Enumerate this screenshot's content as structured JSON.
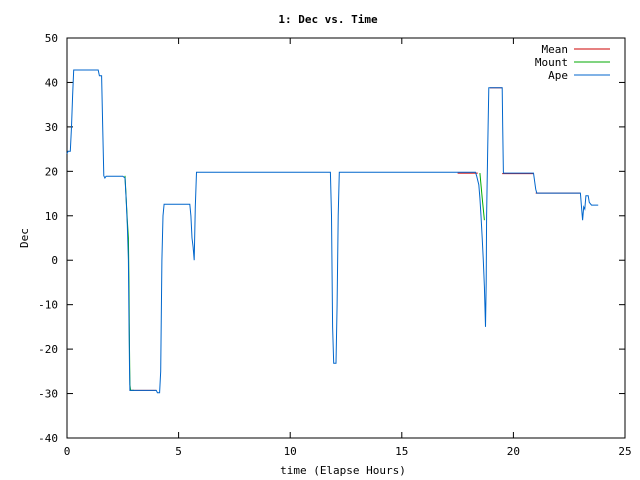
{
  "chart_data": {
    "type": "line",
    "title": "1: Dec vs. Time",
    "xlabel": "time (Elapse Hours)",
    "ylabel": "Dec",
    "xlim": [
      0,
      25
    ],
    "ylim": [
      -40,
      50
    ],
    "xticks": [
      0,
      5,
      10,
      15,
      20,
      25
    ],
    "yticks": [
      -40,
      -30,
      -20,
      -10,
      0,
      10,
      20,
      30,
      40,
      50
    ],
    "grid": false,
    "legend": "top-right",
    "series": [
      {
        "name": "Mean",
        "color": "#cc0000",
        "segments": [
          [
            [
              2.8,
              -29.3
            ],
            [
              4.0,
              -29.3
            ]
          ],
          [
            [
              17.5,
              19.6
            ],
            [
              18.4,
              19.6
            ]
          ],
          [
            [
              18.95,
              38.8
            ],
            [
              19.5,
              38.8
            ]
          ],
          [
            [
              19.5,
              19.5
            ],
            [
              20.9,
              19.5
            ]
          ],
          [
            [
              21.0,
              15.1
            ],
            [
              23.0,
              15.1
            ]
          ]
        ]
      },
      {
        "name": "Mount",
        "color": "#00aa00",
        "segments": [
          [
            [
              2.6,
              19.0
            ],
            [
              2.7,
              9.0
            ],
            [
              2.75,
              5.0
            ],
            [
              2.78,
              -6.0
            ],
            [
              2.8,
              -20.0
            ],
            [
              2.82,
              -28.0
            ],
            [
              2.85,
              -29.3
            ],
            [
              3.0,
              -29.3
            ]
          ],
          [
            [
              18.5,
              19.6
            ],
            [
              18.6,
              14.0
            ],
            [
              18.7,
              9.0
            ]
          ]
        ]
      },
      {
        "name": "Ape",
        "color": "#0066cc",
        "points": [
          [
            0.0,
            24.0
          ],
          [
            0.05,
            24.5
          ],
          [
            0.15,
            24.5
          ],
          [
            0.2,
            30.0
          ],
          [
            0.25,
            37.0
          ],
          [
            0.3,
            42.8
          ],
          [
            1.4,
            42.8
          ],
          [
            1.45,
            41.5
          ],
          [
            1.55,
            41.5
          ],
          [
            1.6,
            30.0
          ],
          [
            1.65,
            19.0
          ],
          [
            1.7,
            18.5
          ],
          [
            1.75,
            18.9
          ],
          [
            2.5,
            18.9
          ],
          [
            2.6,
            18.5
          ],
          [
            2.65,
            14.0
          ],
          [
            2.7,
            8.0
          ],
          [
            2.75,
            0.0
          ],
          [
            2.78,
            -14.0
          ],
          [
            2.8,
            -24.0
          ],
          [
            2.82,
            -29.3
          ],
          [
            4.0,
            -29.3
          ],
          [
            4.05,
            -29.8
          ],
          [
            4.15,
            -29.8
          ],
          [
            4.2,
            -25.0
          ],
          [
            4.25,
            0.0
          ],
          [
            4.3,
            10.0
          ],
          [
            4.35,
            12.6
          ],
          [
            5.5,
            12.6
          ],
          [
            5.55,
            10.0
          ],
          [
            5.6,
            5.0
          ],
          [
            5.65,
            3.0
          ],
          [
            5.7,
            0.0
          ],
          [
            5.75,
            12.0
          ],
          [
            5.8,
            19.8
          ],
          [
            11.8,
            19.8
          ],
          [
            11.85,
            10.0
          ],
          [
            11.9,
            -15.0
          ],
          [
            11.95,
            -23.2
          ],
          [
            12.05,
            -23.2
          ],
          [
            12.1,
            -10.0
          ],
          [
            12.15,
            10.0
          ],
          [
            12.2,
            19.8
          ],
          [
            18.3,
            19.8
          ],
          [
            18.35,
            19.0
          ],
          [
            18.45,
            17.0
          ],
          [
            18.5,
            14.0
          ],
          [
            18.55,
            10.0
          ],
          [
            18.6,
            5.0
          ],
          [
            18.65,
            0.0
          ],
          [
            18.7,
            -6.0
          ],
          [
            18.75,
            -15.0
          ],
          [
            18.78,
            -5.0
          ],
          [
            18.8,
            10.0
          ],
          [
            18.85,
            25.0
          ],
          [
            18.9,
            38.8
          ],
          [
            19.5,
            38.8
          ],
          [
            19.52,
            30.0
          ],
          [
            19.55,
            19.6
          ],
          [
            20.9,
            19.6
          ],
          [
            21.0,
            16.0
          ],
          [
            21.05,
            15.1
          ],
          [
            23.0,
            15.1
          ],
          [
            23.05,
            12.0
          ],
          [
            23.1,
            9.0
          ],
          [
            23.15,
            12.0
          ],
          [
            23.2,
            11.5
          ],
          [
            23.25,
            14.5
          ],
          [
            23.35,
            14.5
          ],
          [
            23.4,
            13.0
          ],
          [
            23.5,
            12.4
          ],
          [
            23.8,
            12.4
          ]
        ]
      }
    ]
  }
}
